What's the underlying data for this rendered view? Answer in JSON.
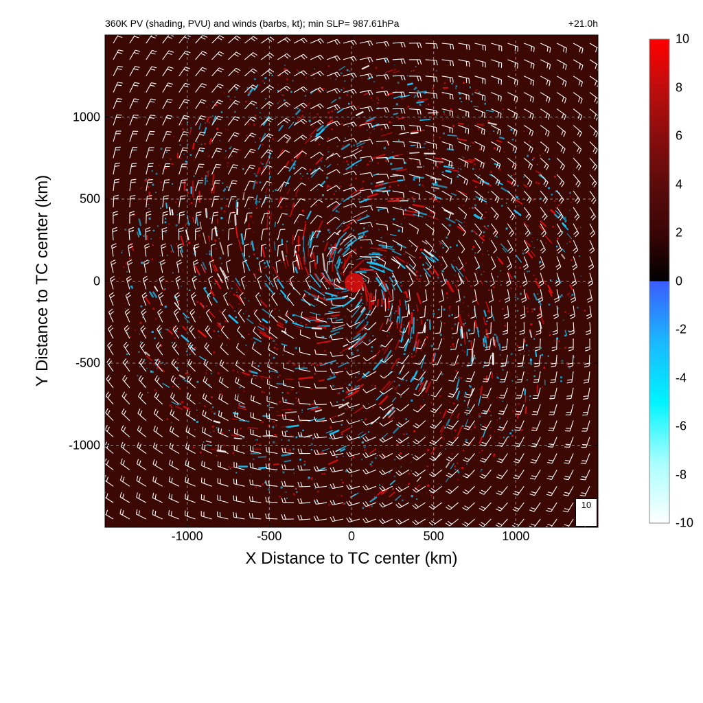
{
  "chart_data": {
    "type": "heatmap",
    "title": "360K PV (shading, PVU) and winds (barbs, kt); min SLP= 987.61hPa",
    "forecast_time": "+21.0h",
    "xlabel": "X Distance to TC center (km)",
    "ylabel": "Y Distance to TC center (km)",
    "xlim": [
      -1500,
      1500
    ],
    "ylim": [
      -1500,
      1500
    ],
    "x_ticks": [
      -1000,
      -500,
      0,
      500,
      1000
    ],
    "y_ticks": [
      1000,
      500,
      0,
      -500,
      -1000
    ],
    "x_tick_labels": [
      "-1000",
      "-500",
      "0",
      "500",
      "1000"
    ],
    "y_tick_labels": [
      "1000",
      "500",
      "0",
      "-500",
      "-1000"
    ],
    "grid": "dashed",
    "colorbar": {
      "range": [
        -10,
        10
      ],
      "ticks": [
        10,
        8,
        6,
        4,
        2,
        0,
        -2,
        -4,
        -6,
        -8,
        -10
      ],
      "tick_labels": [
        "10",
        "8",
        "6",
        "4",
        "2",
        "0",
        "-2",
        "-4",
        "-6",
        "-8",
        "-10"
      ],
      "positive_colors": [
        "#000000",
        "#3a0505",
        "#5c0b0b",
        "#8a0d0d",
        "#c00d0d",
        "#ff0000"
      ],
      "negative_colors": [
        "#ffffff",
        "#a8ffff",
        "#00f4ff",
        "#1ab8ff",
        "#3a5cff"
      ],
      "background_color": "#3c0804"
    },
    "field_description_colors": {
      "positive": "#e01010",
      "negative": "#18c8ff",
      "highlight": "#ffffff"
    },
    "wind_barbs": {
      "color": "#ffffff",
      "grid_spacing_km": 100,
      "circulation": "cyclonic",
      "reference_barb_label": "10"
    }
  }
}
